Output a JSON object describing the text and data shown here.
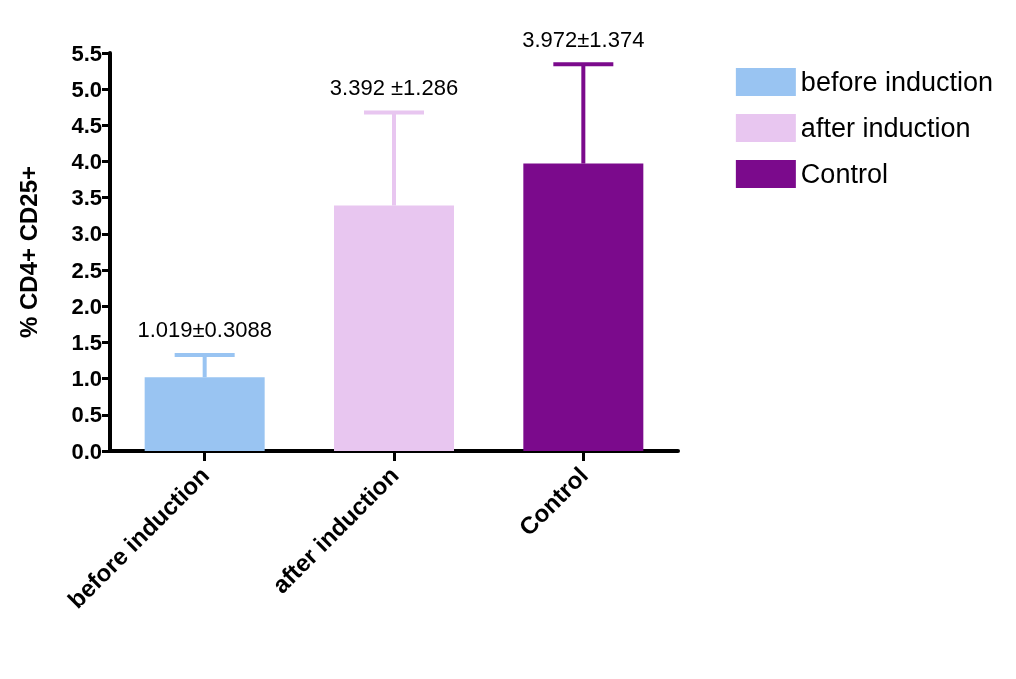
{
  "chart_data": {
    "type": "bar",
    "ylabel": "% CD4+ CD25+",
    "categories": [
      "before induction",
      "after induction",
      "Control"
    ],
    "series": [
      {
        "name": "before induction",
        "color": "#99c4f2",
        "values": [
          1.019,
          null,
          null
        ],
        "errors": [
          [
            1.019,
            1.3278
          ],
          null,
          null
        ]
      },
      {
        "name": "after induction",
        "color": "#e8c6f0",
        "values": [
          null,
          3.392,
          null
        ],
        "errors": [
          null,
          [
            3.392,
            4.678
          ],
          null
        ]
      },
      {
        "name": "Control",
        "color": "#7b0a8c",
        "values": [
          null,
          null,
          3.972
        ],
        "errors": [
          null,
          null,
          [
            3.972,
            5.346
          ]
        ]
      }
    ],
    "annotations": [
      {
        "text": "1.019±0.3088",
        "x": "before induction",
        "y": 1.3278
      },
      {
        "text": "3.392 ±1.286",
        "x": "after induction",
        "y": 4.678
      },
      {
        "text": "3.972±1.374",
        "x": "Control",
        "y": 5.346
      }
    ],
    "ylim": [
      0,
      5.5
    ],
    "yticks": [
      {
        "value": 0,
        "label": "0.0"
      },
      0.5,
      {
        "value": 1,
        "label": "1.0"
      },
      1.5,
      {
        "value": 2,
        "label": "2.0"
      },
      2.5,
      {
        "value": 3,
        "label": "3.0"
      },
      3.5,
      {
        "value": 4,
        "label": "4.0"
      },
      4.5,
      {
        "value": 5,
        "label": "5.0"
      },
      5.5
    ],
    "grid": false,
    "legend": "top right"
  }
}
